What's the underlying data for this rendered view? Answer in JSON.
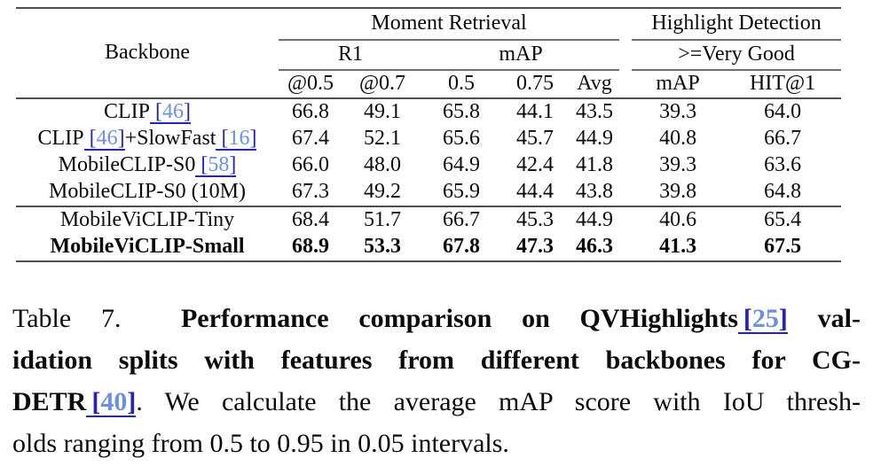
{
  "colors": {
    "citation_number": "#6d8fdd",
    "citation_bracket": "#2424b8",
    "rule_heavy": "#4d4d4d",
    "rule_light": "#707070"
  },
  "table": {
    "backbone_header": "Backbone",
    "groups": [
      {
        "label": "Moment Retrieval"
      },
      {
        "label": "Highlight Detection"
      }
    ],
    "subgroups": [
      {
        "label": "R1"
      },
      {
        "label": "mAP"
      },
      {
        "label": ">=Very Good"
      }
    ],
    "columns": [
      "@0.5",
      "@0.7",
      "0.5",
      "0.75",
      "Avg",
      "mAP",
      "HIT@1"
    ],
    "rows": [
      {
        "name": [
          {
            "text": "CLIP"
          },
          {
            "cite": "46"
          }
        ],
        "values": [
          "66.8",
          "49.1",
          "65.8",
          "44.1",
          "43.5",
          "39.3",
          "64.0"
        ],
        "bold": false
      },
      {
        "name": [
          {
            "text": "CLIP"
          },
          {
            "cite": "46"
          },
          {
            "text": "+SlowFast"
          },
          {
            "cite": "16"
          }
        ],
        "values": [
          "67.4",
          "52.1",
          "65.6",
          "45.7",
          "44.9",
          "40.8",
          "66.7"
        ],
        "bold": false
      },
      {
        "name": [
          {
            "text": "MobileCLIP-S0"
          },
          {
            "cite": "58"
          }
        ],
        "values": [
          "66.0",
          "48.0",
          "64.9",
          "42.4",
          "41.8",
          "39.3",
          "63.6"
        ],
        "bold": false
      },
      {
        "name": [
          {
            "text": "MobileCLIP-S0 (10M)"
          }
        ],
        "values": [
          "67.3",
          "49.2",
          "65.9",
          "44.4",
          "43.8",
          "39.8",
          "64.8"
        ],
        "bold": false
      },
      {
        "name": [
          {
            "text": "MobileViCLIP-Tiny"
          }
        ],
        "values": [
          "68.4",
          "51.7",
          "66.7",
          "45.3",
          "44.9",
          "40.6",
          "65.4"
        ],
        "bold": false
      },
      {
        "name": [
          {
            "text": "MobileViCLIP-Small"
          }
        ],
        "values": [
          "68.9",
          "53.3",
          "67.8",
          "47.3",
          "46.3",
          "41.3",
          "67.5"
        ],
        "bold": true
      }
    ]
  },
  "caption": {
    "lines": [
      {
        "justify": true,
        "segments": [
          {
            "text": "Table 7.  ",
            "bold": false
          },
          {
            "text": "Performance comparison on QVHighlights",
            "bold": true
          },
          {
            "cite": "25",
            "bold": true
          },
          {
            "text": " val-",
            "bold": true
          }
        ]
      },
      {
        "justify": true,
        "segments": [
          {
            "text": "idation splits with features from different backbones for CG-",
            "bold": true
          }
        ]
      },
      {
        "justify": true,
        "segments": [
          {
            "text": "DETR",
            "bold": true
          },
          {
            "cite": "40",
            "bold": true
          },
          {
            "text": ". We calculate the average mAP score with IoU thresh-",
            "bold": false
          }
        ]
      },
      {
        "justify": false,
        "segments": [
          {
            "text": "olds ranging from 0.5 to 0.95 in 0.05 intervals.",
            "bold": false
          }
        ]
      }
    ]
  }
}
